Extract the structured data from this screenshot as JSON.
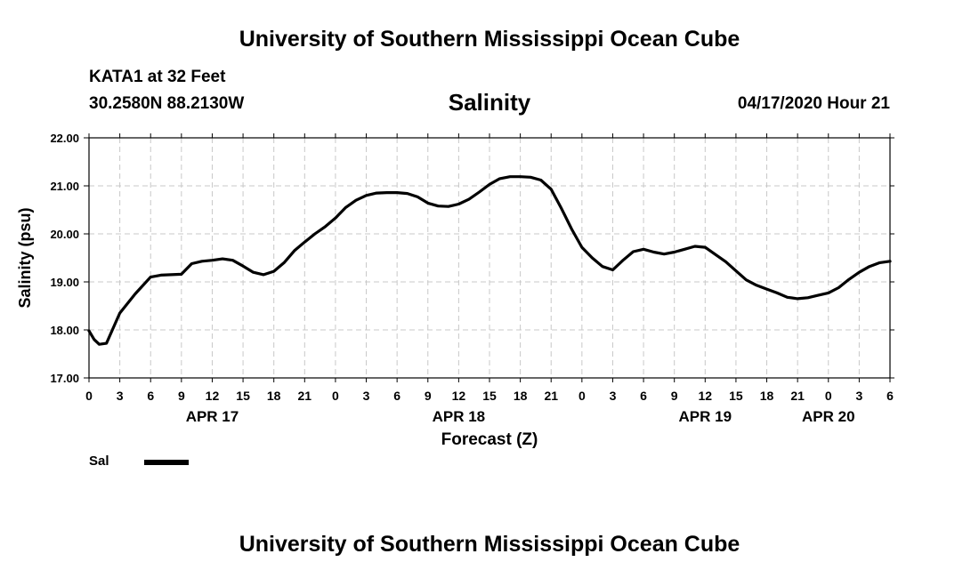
{
  "header": {
    "title": "University of Southern Mississippi Ocean Cube",
    "station": "KATA1 at 32 Feet",
    "coordinates": "30.2580N 88.2130W",
    "datetime": "04/17/2020 Hour 21"
  },
  "footer": {
    "title": "University of Southern Mississippi Ocean Cube"
  },
  "chart_data": {
    "type": "line",
    "title": "Salinity",
    "xlabel": "Forecast (Z)",
    "ylabel": "Salinity (psu)",
    "ylim": [
      17.0,
      22.0
    ],
    "xlim": [
      0,
      78
    ],
    "x_unit": "hours since APR 17 00Z",
    "grid": true,
    "y_ticks": [
      "17.00",
      "18.00",
      "19.00",
      "20.00",
      "21.00",
      "22.00"
    ],
    "x_ticks": [
      "0",
      "3",
      "6",
      "9",
      "12",
      "15",
      "18",
      "21",
      "0",
      "3",
      "6",
      "9",
      "12",
      "15",
      "18",
      "21",
      "0",
      "3",
      "6",
      "9",
      "12",
      "15",
      "18",
      "21",
      "0",
      "3",
      "6"
    ],
    "day_labels": [
      {
        "label": "APR 17",
        "hour": 12
      },
      {
        "label": "APR 18",
        "hour": 36
      },
      {
        "label": "APR 19",
        "hour": 60
      },
      {
        "label": "APR 20",
        "hour": 72
      }
    ],
    "legend": [
      {
        "name": "Sal",
        "color": "#000000"
      }
    ],
    "series": [
      {
        "name": "Sal",
        "x": [
          0,
          0.5,
          1,
          1.7,
          3,
          4.5,
          6,
          7,
          8,
          9,
          10,
          11,
          12,
          13,
          14,
          15,
          16,
          17,
          18,
          19,
          20,
          21,
          22,
          23,
          24,
          25,
          26,
          27,
          28,
          29,
          30,
          31,
          32,
          33,
          34,
          35,
          36,
          37,
          38,
          39,
          40,
          41,
          42,
          43,
          44,
          45,
          46,
          47,
          48,
          49,
          50,
          51,
          52,
          53,
          54,
          55,
          56,
          57,
          58,
          59,
          60,
          61,
          62,
          63,
          64,
          65,
          66,
          67,
          68,
          69,
          70,
          71,
          72,
          73,
          74,
          75,
          76,
          77,
          78
        ],
        "y": [
          17.98,
          17.8,
          17.7,
          17.72,
          18.35,
          18.75,
          19.1,
          19.14,
          19.15,
          19.16,
          19.38,
          19.43,
          19.45,
          19.48,
          19.45,
          19.33,
          19.2,
          19.15,
          19.22,
          19.4,
          19.65,
          19.83,
          20.0,
          20.15,
          20.33,
          20.55,
          20.7,
          20.8,
          20.85,
          20.86,
          20.86,
          20.84,
          20.77,
          20.64,
          20.58,
          20.57,
          20.62,
          20.72,
          20.87,
          21.03,
          21.15,
          21.19,
          21.19,
          21.18,
          21.12,
          20.93,
          20.53,
          20.1,
          19.72,
          19.5,
          19.32,
          19.25,
          19.45,
          19.63,
          19.68,
          19.62,
          19.58,
          19.62,
          19.68,
          19.74,
          19.72,
          19.57,
          19.42,
          19.23,
          19.04,
          18.93,
          18.85,
          18.77,
          18.68,
          18.65,
          18.67,
          18.72,
          18.77,
          18.88,
          19.05,
          19.2,
          19.32,
          19.4,
          19.43
        ]
      }
    ]
  }
}
